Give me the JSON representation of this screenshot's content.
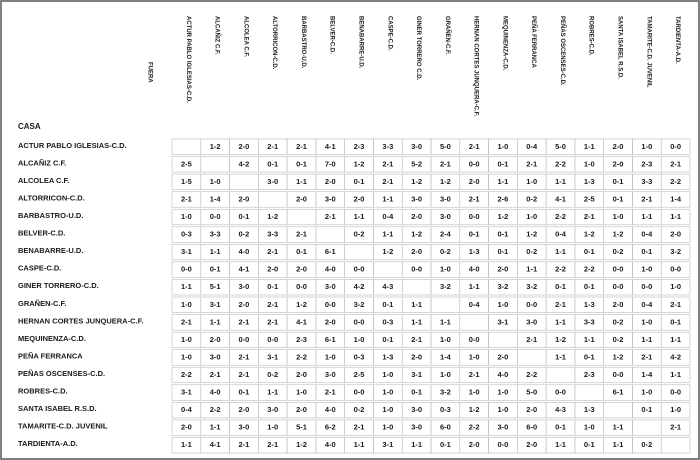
{
  "labels": {
    "away": "FUERA",
    "home": "CASA"
  },
  "columns": [
    "ACTUR PABLO IGLESIAS-C.D.",
    "ALCAÑIZ C.F.",
    "ALCOLEA C.F.",
    "ALTORRICON-C.D.",
    "BARBASTRO-U.D.",
    "BELVER-C.D.",
    "BENABARRE-U.D.",
    "CASPE-C.D.",
    "GINER TORRERO C.D.",
    "GRAÑEN-C.F.",
    "HERNAN CORTES JUNQUERA-C.F.",
    "MEQUINENZA-C.D.",
    "PEÑA FERRANCA",
    "PEÑAS OSCENSES-C.D.",
    "ROBRES-C.D.",
    "SANTA ISABEL R.S.D.",
    "TAMARITE-C.D. JUVENIL",
    "TARDIENTA-A.D."
  ],
  "rows": [
    {
      "team": "ACTUR PABLO IGLESIAS-C.D.",
      "results": [
        null,
        "1-2",
        "2-0",
        "2-1",
        "2-1",
        "4-1",
        "2-3",
        "3-3",
        "3-0",
        "5-0",
        "2-1",
        "1-0",
        "0-4",
        "5-0",
        "1-1",
        "2-0",
        "1-0",
        "0-0"
      ]
    },
    {
      "team": "ALCAÑIZ C.F.",
      "results": [
        "2-5",
        null,
        "4-2",
        "0-1",
        "0-1",
        "7-0",
        "1-2",
        "2-1",
        "5-2",
        "2-1",
        "0-0",
        "0-1",
        "2-1",
        "2-2",
        "1-0",
        "2-0",
        "2-3",
        "2-1"
      ]
    },
    {
      "team": "ALCOLEA C.F.",
      "results": [
        "1-5",
        "1-0",
        null,
        "3-0",
        "1-1",
        "2-0",
        "0-1",
        "2-1",
        "1-2",
        "1-2",
        "2-0",
        "1-1",
        "1-0",
        "1-1",
        "1-3",
        "0-1",
        "3-3",
        "2-2"
      ]
    },
    {
      "team": "ALTORRICON-C.D.",
      "results": [
        "2-1",
        "1-4",
        "2-0",
        null,
        "2-0",
        "3-0",
        "2-0",
        "1-1",
        "3-0",
        "3-0",
        "2-1",
        "2-6",
        "0-2",
        "4-1",
        "2-5",
        "0-1",
        "2-1",
        "1-4"
      ]
    },
    {
      "team": "BARBASTRO-U.D.",
      "results": [
        "1-0",
        "0-0",
        "0-1",
        "1-2",
        null,
        "2-1",
        "1-1",
        "0-4",
        "2-0",
        "3-0",
        "0-0",
        "1-2",
        "1-0",
        "2-2",
        "2-1",
        "1-0",
        "1-1",
        "1-1"
      ]
    },
    {
      "team": "BELVER-C.D.",
      "results": [
        "0-3",
        "3-3",
        "0-2",
        "3-3",
        "2-1",
        null,
        "0-2",
        "1-1",
        "1-2",
        "2-4",
        "0-1",
        "0-1",
        "1-2",
        "0-4",
        "1-2",
        "1-2",
        "0-4",
        "2-0"
      ]
    },
    {
      "team": "BENABARRE-U.D.",
      "results": [
        "3-1",
        "1-1",
        "4-0",
        "2-1",
        "0-1",
        "6-1",
        null,
        "1-2",
        "2-0",
        "0-2",
        "1-3",
        "0-1",
        "0-2",
        "1-1",
        "0-1",
        "0-2",
        "0-1",
        "3-2"
      ]
    },
    {
      "team": "CASPE-C.D.",
      "results": [
        "0-0",
        "0-1",
        "4-1",
        "2-0",
        "2-0",
        "4-0",
        "0-0",
        null,
        "0-0",
        "1-0",
        "4-0",
        "2-0",
        "1-1",
        "2-2",
        "2-2",
        "0-0",
        "1-0",
        "0-0"
      ]
    },
    {
      "team": "GINER TORRERO-C.D.",
      "results": [
        "1-1",
        "5-1",
        "3-0",
        "0-1",
        "0-0",
        "3-0",
        "4-2",
        "4-3",
        null,
        "3-2",
        "1-1",
        "3-2",
        "3-2",
        "0-1",
        "0-1",
        "0-0",
        "0-0",
        "1-0"
      ]
    },
    {
      "team": "GRAÑEN-C.F.",
      "results": [
        "1-0",
        "3-1",
        "2-0",
        "2-1",
        "1-2",
        "0-0",
        "3-2",
        "0-1",
        "1-1",
        null,
        "0-4",
        "1-0",
        "0-0",
        "2-1",
        "1-3",
        "2-0",
        "0-4",
        "2-1"
      ]
    },
    {
      "team": "HERNAN CORTES JUNQUERA-C.F.",
      "results": [
        "2-1",
        "1-1",
        "2-1",
        "2-1",
        "4-1",
        "2-0",
        "0-0",
        "0-3",
        "1-1",
        "1-1",
        null,
        "3-1",
        "3-0",
        "1-1",
        "3-3",
        "0-2",
        "1-0",
        "0-1"
      ]
    },
    {
      "team": "MEQUINENZA-C.D.",
      "results": [
        "1-0",
        "2-0",
        "0-0",
        "0-0",
        "2-3",
        "6-1",
        "1-0",
        "0-1",
        "2-1",
        "1-0",
        "0-0",
        null,
        "2-1",
        "1-2",
        "1-1",
        "0-2",
        "1-1",
        "1-1"
      ]
    },
    {
      "team": "PEÑA FERRANCA",
      "results": [
        "1-0",
        "3-0",
        "2-1",
        "3-1",
        "2-2",
        "1-0",
        "0-3",
        "1-3",
        "2-0",
        "1-4",
        "1-0",
        "2-0",
        null,
        "1-1",
        "0-1",
        "1-2",
        "2-1",
        "4-2"
      ]
    },
    {
      "team": "PEÑAS OSCENSES-C.D.",
      "results": [
        "2-2",
        "2-1",
        "2-1",
        "0-2",
        "2-0",
        "3-0",
        "2-5",
        "1-0",
        "3-1",
        "1-0",
        "2-1",
        "4-0",
        "2-2",
        null,
        "2-3",
        "0-0",
        "1-4",
        "1-1"
      ]
    },
    {
      "team": "ROBRES-C.D.",
      "results": [
        "3-1",
        "4-0",
        "0-1",
        "1-1",
        "1-0",
        "2-1",
        "0-0",
        "1-0",
        "0-1",
        "3-2",
        "1-0",
        "1-0",
        "5-0",
        "0-0",
        null,
        "6-1",
        "1-0",
        "0-0"
      ]
    },
    {
      "team": "SANTA ISABEL R.S.D.",
      "results": [
        "0-4",
        "2-2",
        "2-0",
        "3-0",
        "2-0",
        "4-0",
        "0-2",
        "1-0",
        "3-0",
        "0-3",
        "1-2",
        "1-0",
        "2-0",
        "4-3",
        "1-3",
        null,
        "0-1",
        "1-0"
      ]
    },
    {
      "team": "TAMARITE-C.D. JUVENIL",
      "results": [
        "2-0",
        "1-1",
        "3-0",
        "1-0",
        "5-1",
        "6-2",
        "2-1",
        "1-0",
        "3-0",
        "6-0",
        "2-2",
        "3-0",
        "6-0",
        "0-1",
        "1-0",
        "1-1",
        null,
        "2-1"
      ]
    },
    {
      "team": "TARDIENTA-A.D.",
      "results": [
        "1-1",
        "4-1",
        "2-1",
        "2-1",
        "1-2",
        "4-0",
        "1-1",
        "3-1",
        "1-1",
        "0-1",
        "2-0",
        "0-0",
        "2-0",
        "1-1",
        "0-1",
        "1-1",
        "0-2",
        null
      ]
    }
  ]
}
